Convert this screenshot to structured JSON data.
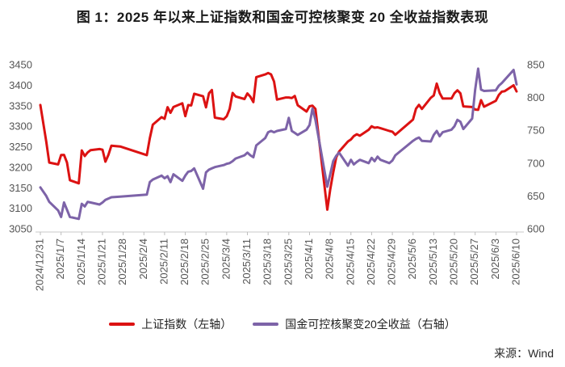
{
  "title": "图 1：2025 年以来上证指数和国金可控核聚变 20 全收益指数表现",
  "source": "来源：Wind",
  "chart_data": {
    "type": "line",
    "title": "图 1：2025 年以来上证指数和国金可控核聚变 20 全收益指数表现",
    "grid": false,
    "legend_position": "bottom",
    "x_axis": {
      "start": "2024/12/31",
      "end": "2025/6/10",
      "ticks": [
        "2024/12/31",
        "2025/1/7",
        "2025/1/14",
        "2025/1/21",
        "2025/1/28",
        "2025/2/4",
        "2025/2/11",
        "2025/2/18",
        "2025/2/25",
        "2025/3/4",
        "2025/3/11",
        "2025/3/18",
        "2025/3/25",
        "2025/4/1",
        "2025/4/8",
        "2025/4/15",
        "2025/4/22",
        "2025/4/29",
        "2025/5/6",
        "2025/5/13",
        "2025/5/20",
        "2025/5/27",
        "2025/6/3",
        "2025/6/10"
      ]
    },
    "left_axis": {
      "min": 3050,
      "max": 3450,
      "step": 50,
      "ticks": [
        3450,
        3400,
        3350,
        3300,
        3250,
        3200,
        3150,
        3100,
        3050
      ]
    },
    "right_axis": {
      "min": 600,
      "max": 850,
      "step": 50,
      "ticks": [
        850,
        800,
        750,
        700,
        650,
        600
      ]
    },
    "series": [
      {
        "name": "上证指数（左轴）",
        "color": "#dc1212",
        "axis": "left",
        "points": [
          [
            "2024/12/31",
            3351.76
          ],
          [
            "2025/1/2",
            3262.56
          ],
          [
            "2025/1/3",
            3211.43
          ],
          [
            "2025/1/6",
            3206.92
          ],
          [
            "2025/1/7",
            3229.64
          ],
          [
            "2025/1/8",
            3230.17
          ],
          [
            "2025/1/9",
            3211.39
          ],
          [
            "2025/1/10",
            3168.52
          ],
          [
            "2025/1/13",
            3160.76
          ],
          [
            "2025/1/14",
            3240.94
          ],
          [
            "2025/1/15",
            3227.12
          ],
          [
            "2025/1/16",
            3236.03
          ],
          [
            "2025/1/17",
            3241.82
          ],
          [
            "2025/1/20",
            3244.38
          ],
          [
            "2025/1/21",
            3242.62
          ],
          [
            "2025/1/22",
            3213.62
          ],
          [
            "2025/1/23",
            3230.16
          ],
          [
            "2025/1/24",
            3252.63
          ],
          [
            "2025/1/27",
            3250.6
          ],
          [
            "2025/2/5",
            3229.49
          ],
          [
            "2025/2/6",
            3270.66
          ],
          [
            "2025/2/7",
            3303.67
          ],
          [
            "2025/2/10",
            3322.17
          ],
          [
            "2025/2/11",
            3318.06
          ],
          [
            "2025/2/12",
            3346.39
          ],
          [
            "2025/2/13",
            3332.48
          ],
          [
            "2025/2/14",
            3346.72
          ],
          [
            "2025/2/17",
            3355.83
          ],
          [
            "2025/2/18",
            3324.49
          ],
          [
            "2025/2/19",
            3351.54
          ],
          [
            "2025/2/20",
            3350.78
          ],
          [
            "2025/2/21",
            3379.11
          ],
          [
            "2025/2/24",
            3373.03
          ],
          [
            "2025/2/25",
            3346.04
          ],
          [
            "2025/2/26",
            3380.21
          ],
          [
            "2025/2/27",
            3388.06
          ],
          [
            "2025/2/28",
            3320.9
          ],
          [
            "2025/3/3",
            3316.93
          ],
          [
            "2025/3/4",
            3324.21
          ],
          [
            "2025/3/5",
            3341.96
          ],
          [
            "2025/3/6",
            3381.1
          ],
          [
            "2025/3/7",
            3372.55
          ],
          [
            "2025/3/10",
            3366.16
          ],
          [
            "2025/3/11",
            3379.83
          ],
          [
            "2025/3/12",
            3371.92
          ],
          [
            "2025/3/13",
            3358.73
          ],
          [
            "2025/3/14",
            3419.56
          ],
          [
            "2025/3/17",
            3426.13
          ],
          [
            "2025/3/18",
            3429.76
          ],
          [
            "2025/3/19",
            3426.43
          ],
          [
            "2025/3/20",
            3408.95
          ],
          [
            "2025/3/21",
            3364.83
          ],
          [
            "2025/3/24",
            3370.03
          ],
          [
            "2025/3/25",
            3369.98
          ],
          [
            "2025/3/26",
            3368.7
          ],
          [
            "2025/3/27",
            3373.75
          ],
          [
            "2025/3/28",
            3351.31
          ],
          [
            "2025/3/31",
            3335.75
          ],
          [
            "2025/4/1",
            3348.44
          ],
          [
            "2025/4/2",
            3350.13
          ],
          [
            "2025/4/3",
            3342.01
          ],
          [
            "2025/4/7",
            3096.58
          ],
          [
            "2025/4/8",
            3145.55
          ],
          [
            "2025/4/9",
            3186.81
          ],
          [
            "2025/4/10",
            3223.64
          ],
          [
            "2025/4/11",
            3238.23
          ],
          [
            "2025/4/14",
            3262.81
          ],
          [
            "2025/4/15",
            3267.66
          ],
          [
            "2025/4/16",
            3276.0
          ],
          [
            "2025/4/17",
            3280.34
          ],
          [
            "2025/4/18",
            3276.73
          ],
          [
            "2025/4/21",
            3291.43
          ],
          [
            "2025/4/22",
            3299.76
          ],
          [
            "2025/4/23",
            3296.36
          ],
          [
            "2025/4/24",
            3297.29
          ],
          [
            "2025/4/25",
            3295.06
          ],
          [
            "2025/4/28",
            3288.41
          ],
          [
            "2025/4/29",
            3286.65
          ],
          [
            "2025/4/30",
            3279.03
          ],
          [
            "2025/5/6",
            3316.11
          ],
          [
            "2025/5/7",
            3342.67
          ],
          [
            "2025/5/8",
            3352.0
          ],
          [
            "2025/5/9",
            3342.0
          ],
          [
            "2025/5/12",
            3369.24
          ],
          [
            "2025/5/13",
            3374.87
          ],
          [
            "2025/5/14",
            3403.95
          ],
          [
            "2025/5/15",
            3380.82
          ],
          [
            "2025/5/16",
            3367.46
          ],
          [
            "2025/5/19",
            3367.58
          ],
          [
            "2025/5/20",
            3380.48
          ],
          [
            "2025/5/21",
            3387.57
          ],
          [
            "2025/5/22",
            3380.19
          ],
          [
            "2025/5/23",
            3348.37
          ],
          [
            "2025/5/26",
            3346.84
          ],
          [
            "2025/5/27",
            3340.69
          ],
          [
            "2025/5/28",
            3339.93
          ],
          [
            "2025/5/29",
            3363.45
          ],
          [
            "2025/5/30",
            3347.49
          ],
          [
            "2025/6/3",
            3361.98
          ],
          [
            "2025/6/4",
            3376.2
          ],
          [
            "2025/6/5",
            3384.1
          ],
          [
            "2025/6/6",
            3385.36
          ],
          [
            "2025/6/9",
            3399.77
          ],
          [
            "2025/6/10",
            3384.82
          ]
        ]
      },
      {
        "name": "国金可控核聚变20全收益（右轴）",
        "color": "#7d63a8",
        "axis": "right",
        "points": [
          [
            "2024/12/31",
            663
          ],
          [
            "2025/1/2",
            650
          ],
          [
            "2025/1/3",
            641
          ],
          [
            "2025/1/6",
            628
          ],
          [
            "2025/1/7",
            618
          ],
          [
            "2025/1/8",
            640
          ],
          [
            "2025/1/9",
            629
          ],
          [
            "2025/1/10",
            618
          ],
          [
            "2025/1/13",
            615
          ],
          [
            "2025/1/14",
            638
          ],
          [
            "2025/1/15",
            634
          ],
          [
            "2025/1/16",
            641
          ],
          [
            "2025/1/17",
            640
          ],
          [
            "2025/1/20",
            637
          ],
          [
            "2025/1/21",
            640
          ],
          [
            "2025/1/22",
            644
          ],
          [
            "2025/1/23",
            646
          ],
          [
            "2025/1/24",
            648
          ],
          [
            "2025/1/27",
            649
          ],
          [
            "2025/2/5",
            652
          ],
          [
            "2025/2/6",
            671
          ],
          [
            "2025/2/7",
            675
          ],
          [
            "2025/2/10",
            681
          ],
          [
            "2025/2/11",
            677
          ],
          [
            "2025/2/12",
            680
          ],
          [
            "2025/2/13",
            671
          ],
          [
            "2025/2/14",
            683
          ],
          [
            "2025/2/17",
            673
          ],
          [
            "2025/2/18",
            681
          ],
          [
            "2025/2/19",
            687
          ],
          [
            "2025/2/20",
            688
          ],
          [
            "2025/2/21",
            692
          ],
          [
            "2025/2/24",
            661
          ],
          [
            "2025/2/25",
            686
          ],
          [
            "2025/2/26",
            690
          ],
          [
            "2025/2/27",
            692
          ],
          [
            "2025/2/28",
            694
          ],
          [
            "2025/3/3",
            697
          ],
          [
            "2025/3/4",
            699
          ],
          [
            "2025/3/5",
            700
          ],
          [
            "2025/3/6",
            703
          ],
          [
            "2025/3/7",
            707
          ],
          [
            "2025/3/10",
            712
          ],
          [
            "2025/3/11",
            716
          ],
          [
            "2025/3/12",
            712
          ],
          [
            "2025/3/13",
            709
          ],
          [
            "2025/3/14",
            727
          ],
          [
            "2025/3/17",
            738
          ],
          [
            "2025/3/18",
            747
          ],
          [
            "2025/3/19",
            749
          ],
          [
            "2025/3/20",
            747
          ],
          [
            "2025/3/21",
            749
          ],
          [
            "2025/3/24",
            752
          ],
          [
            "2025/3/25",
            769
          ],
          [
            "2025/3/26",
            749
          ],
          [
            "2025/3/27",
            746
          ],
          [
            "2025/3/28",
            743
          ],
          [
            "2025/3/31",
            751
          ],
          [
            "2025/4/1",
            758
          ],
          [
            "2025/4/2",
            783
          ],
          [
            "2025/4/3",
            766
          ],
          [
            "2025/4/7",
            664
          ],
          [
            "2025/4/8",
            683
          ],
          [
            "2025/4/9",
            703
          ],
          [
            "2025/4/10",
            711
          ],
          [
            "2025/4/11",
            716
          ],
          [
            "2025/4/14",
            696
          ],
          [
            "2025/4/15",
            705
          ],
          [
            "2025/4/16",
            698
          ],
          [
            "2025/4/17",
            702
          ],
          [
            "2025/4/18",
            705
          ],
          [
            "2025/4/21",
            700
          ],
          [
            "2025/4/22",
            708
          ],
          [
            "2025/4/23",
            703
          ],
          [
            "2025/4/24",
            710
          ],
          [
            "2025/4/25",
            705
          ],
          [
            "2025/4/28",
            700
          ],
          [
            "2025/4/29",
            704
          ],
          [
            "2025/4/30",
            712
          ],
          [
            "2025/5/6",
            734
          ],
          [
            "2025/5/7",
            737
          ],
          [
            "2025/5/8",
            739
          ],
          [
            "2025/5/9",
            734
          ],
          [
            "2025/5/12",
            733
          ],
          [
            "2025/5/13",
            743
          ],
          [
            "2025/5/14",
            749
          ],
          [
            "2025/5/15",
            741
          ],
          [
            "2025/5/16",
            747
          ],
          [
            "2025/5/19",
            751
          ],
          [
            "2025/5/20",
            756
          ],
          [
            "2025/5/21",
            766
          ],
          [
            "2025/5/22",
            763
          ],
          [
            "2025/5/23",
            752
          ],
          [
            "2025/5/26",
            768
          ],
          [
            "2025/5/27",
            812
          ],
          [
            "2025/5/28",
            844
          ],
          [
            "2025/5/29",
            812
          ],
          [
            "2025/5/30",
            810
          ],
          [
            "2025/6/3",
            811
          ],
          [
            "2025/6/4",
            818
          ],
          [
            "2025/6/5",
            822
          ],
          [
            "2025/6/6",
            827
          ],
          [
            "2025/6/9",
            842
          ],
          [
            "2025/6/10",
            820
          ]
        ]
      }
    ]
  }
}
